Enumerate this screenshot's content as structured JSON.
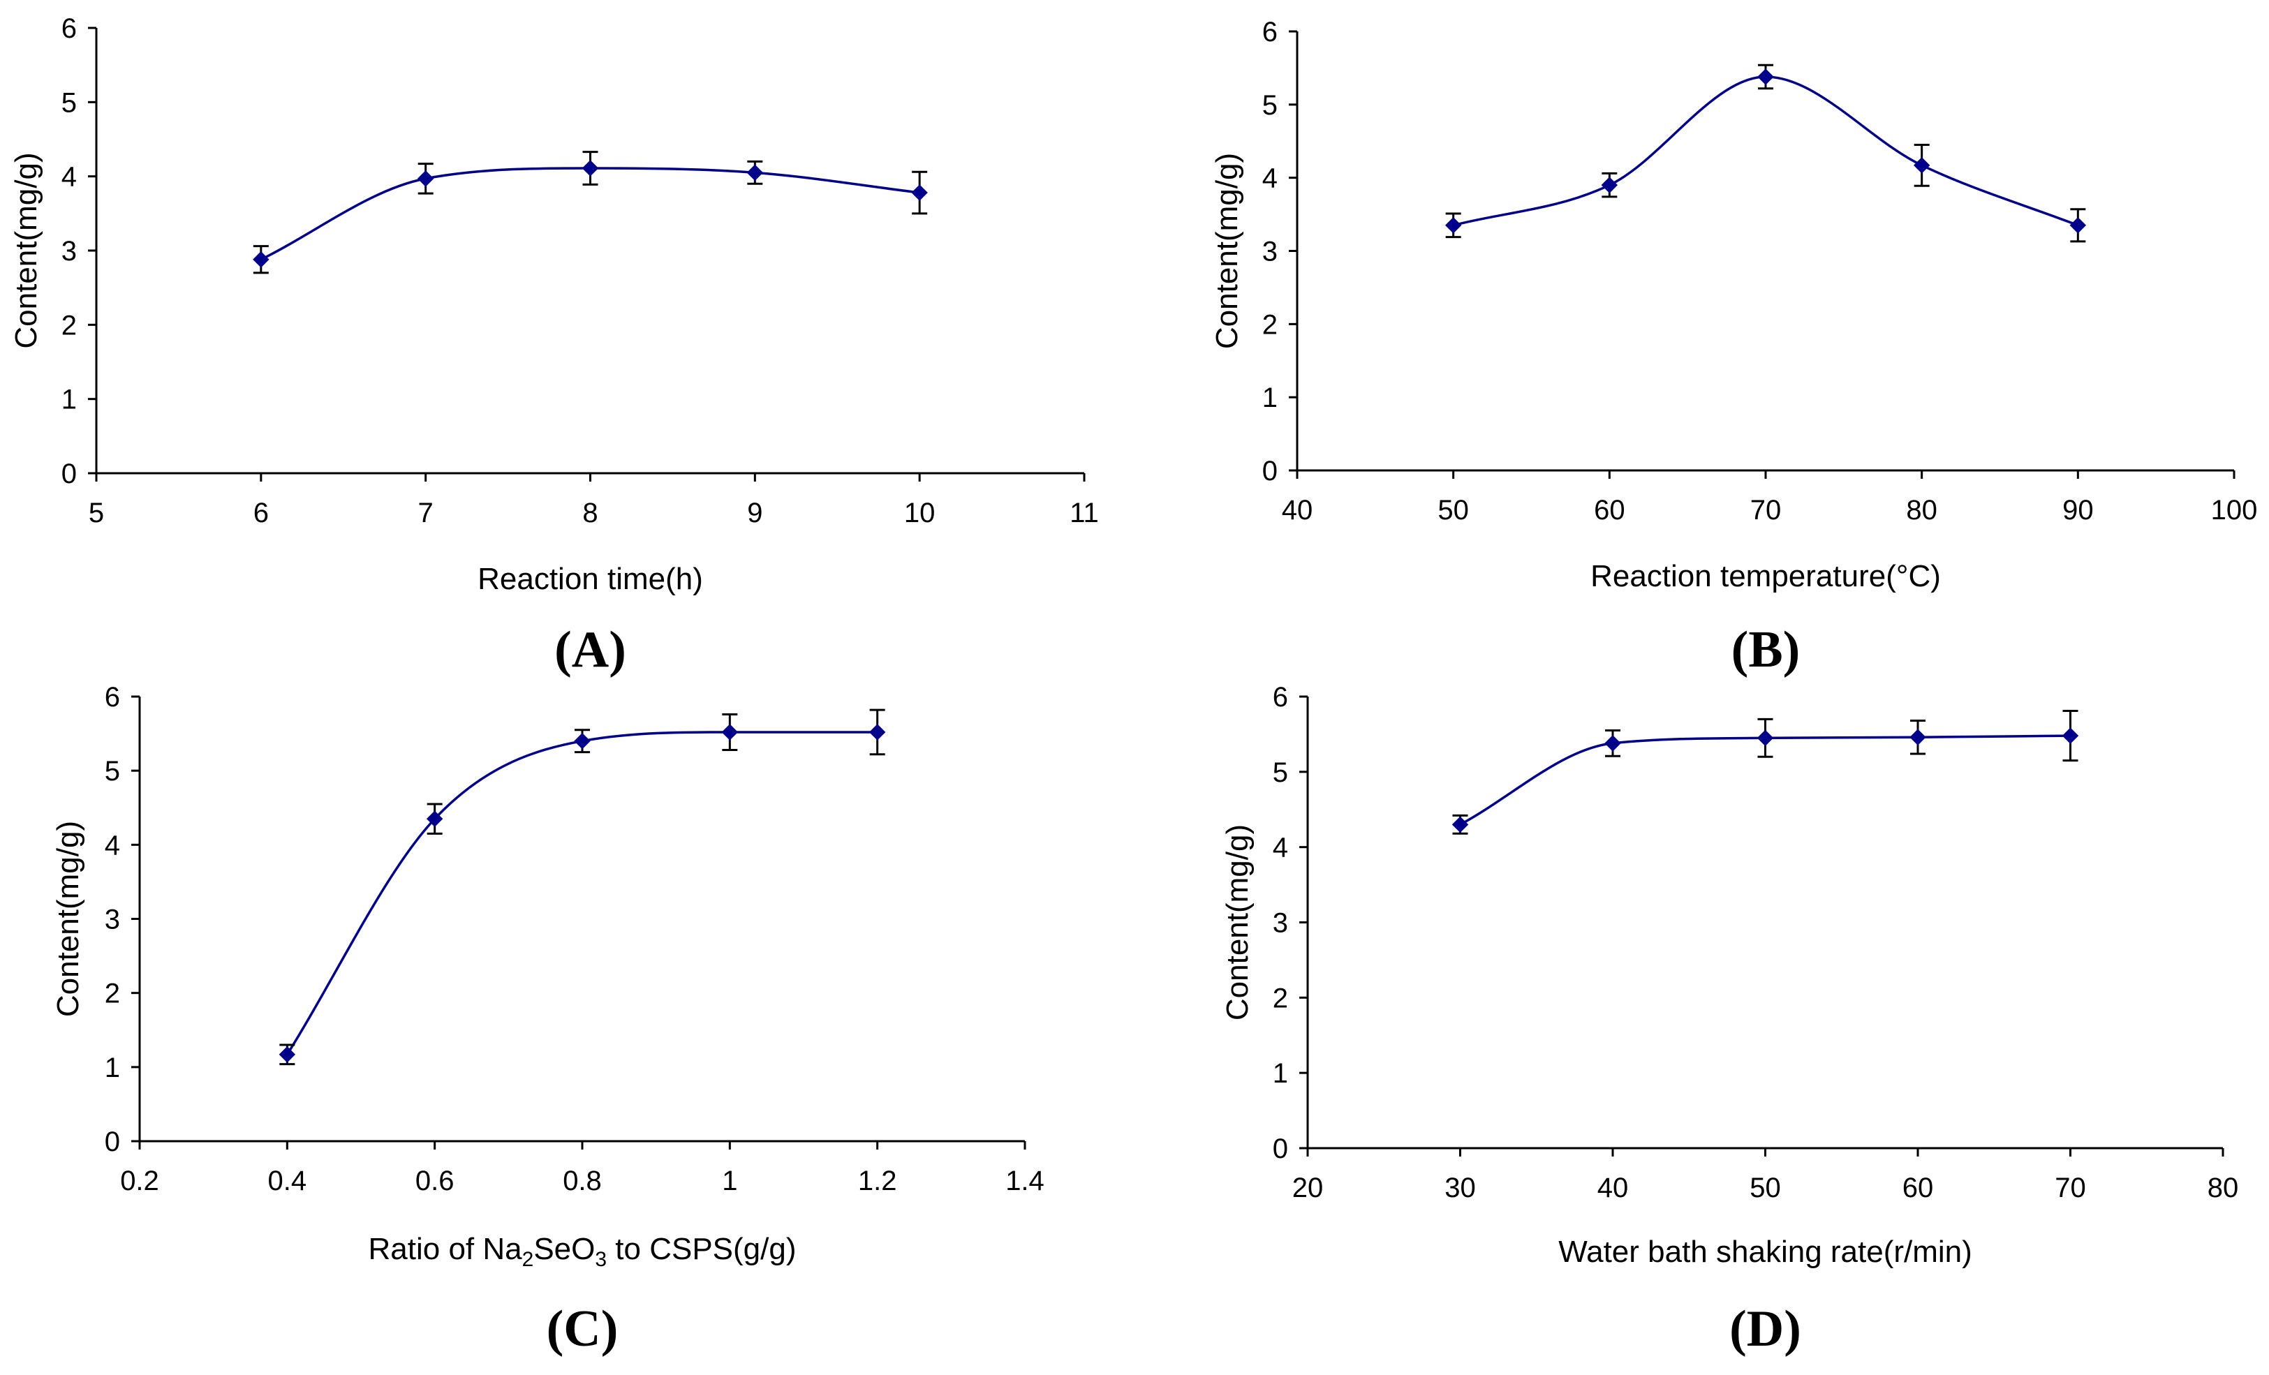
{
  "chart_data": [
    {
      "type": "line",
      "panel_label": "(A)",
      "xlabel": "Reaction time(h)",
      "ylabel": "Content(mg/g)",
      "xlim": [
        5,
        11
      ],
      "ylim": [
        0,
        6
      ],
      "xticks": [
        "5",
        "6",
        "7",
        "8",
        "9",
        "10",
        "11"
      ],
      "yticks": [
        "0",
        "1",
        "2",
        "3",
        "4",
        "5",
        "6"
      ],
      "x": [
        6,
        7,
        8,
        9,
        10
      ],
      "y": [
        2.88,
        3.97,
        4.11,
        4.05,
        3.78
      ],
      "err": [
        0.18,
        0.2,
        0.22,
        0.15,
        0.28
      ]
    },
    {
      "type": "line",
      "panel_label": "(B)",
      "xlabel": "Reaction temperature(°C)",
      "ylabel": "Content(mg/g)",
      "xlim": [
        40,
        100
      ],
      "ylim": [
        0,
        6
      ],
      "xticks": [
        "40",
        "50",
        "60",
        "70",
        "80",
        "90",
        "100"
      ],
      "yticks": [
        "0",
        "1",
        "2",
        "3",
        "4",
        "5",
        "6"
      ],
      "x": [
        50,
        60,
        70,
        80,
        90
      ],
      "y": [
        3.35,
        3.9,
        5.38,
        4.17,
        3.35
      ],
      "err": [
        0.16,
        0.16,
        0.16,
        0.28,
        0.22
      ]
    },
    {
      "type": "line",
      "panel_label": "(C)",
      "xlabel_parts": [
        "Ratio of Na",
        "2",
        "SeO",
        "3",
        " to CSPS(g/g)"
      ],
      "ylabel": "Content(mg/g)",
      "xlim": [
        0.2,
        1.4
      ],
      "ylim": [
        0,
        6
      ],
      "xticks": [
        "0.2",
        "0.4",
        "0.6",
        "0.8",
        "1",
        "1.2",
        "1.4"
      ],
      "yticks": [
        "0",
        "1",
        "2",
        "3",
        "4",
        "5",
        "6"
      ],
      "x": [
        0.4,
        0.6,
        0.8,
        1.0,
        1.2
      ],
      "y": [
        1.17,
        4.35,
        5.4,
        5.52,
        5.52
      ],
      "err": [
        0.13,
        0.2,
        0.15,
        0.24,
        0.3
      ]
    },
    {
      "type": "line",
      "panel_label": "(D)",
      "xlabel": "Water bath shaking rate(r/min)",
      "ylabel": "Content(mg/g)",
      "xlim": [
        20,
        80
      ],
      "ylim": [
        0,
        6
      ],
      "xticks": [
        "20",
        "30",
        "40",
        "50",
        "60",
        "70",
        "80"
      ],
      "yticks": [
        "0",
        "1",
        "2",
        "3",
        "4",
        "5",
        "6"
      ],
      "x": [
        30,
        40,
        50,
        60,
        70
      ],
      "y": [
        4.3,
        5.38,
        5.45,
        5.46,
        5.48
      ],
      "err": [
        0.12,
        0.17,
        0.25,
        0.22,
        0.33
      ]
    }
  ],
  "colors": {
    "series": "#00008b",
    "axis": "#000000"
  }
}
